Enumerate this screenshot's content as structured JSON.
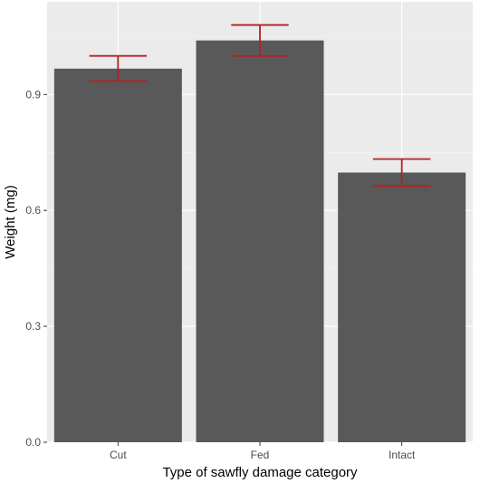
{
  "chart_data": {
    "type": "bar",
    "categories": [
      "Cut",
      "Fed",
      "Intact"
    ],
    "values": [
      0.967,
      1.04,
      0.698
    ],
    "error_bars": {
      "lower": [
        0.935,
        1.0,
        0.663
      ],
      "upper": [
        1.0,
        1.08,
        0.733
      ]
    },
    "xlabel": "Type of sawfly damage category",
    "ylabel": "Weight (mg)",
    "ylim": [
      0.0,
      1.14
    ],
    "yticks": [
      0.0,
      0.3,
      0.6,
      0.9
    ],
    "ytick_labels": [
      "0.0",
      "0.3",
      "0.6",
      "0.9"
    ],
    "grid": true,
    "colors": {
      "panel_background": "#ebebeb",
      "grid_major": "#ffffff",
      "grid_minor": "#f5f5f5",
      "bar_fill": "#595959",
      "error_bar": "#b22222"
    }
  }
}
